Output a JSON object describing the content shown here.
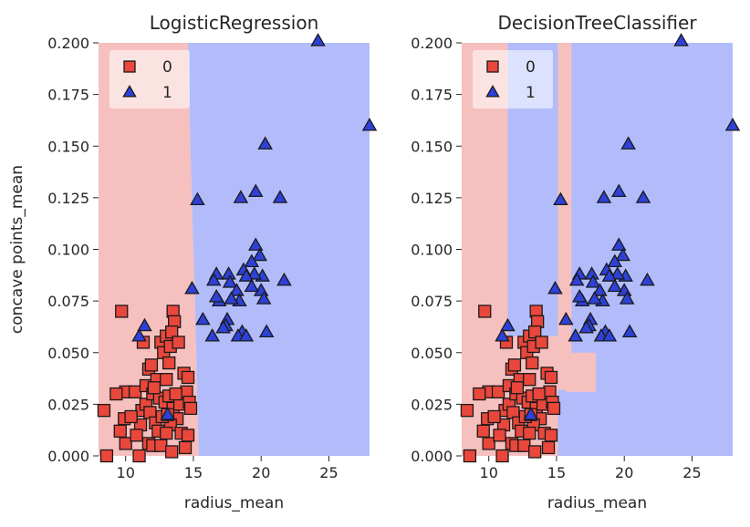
{
  "colors": {
    "class0_region": "#f6c0bf",
    "class1_region": "#b2bcfa",
    "class0_marker": "#e9473c",
    "class1_marker": "#2e41d6",
    "marker_edge": "#1a1a1a",
    "legend_bg": "#ffffff"
  },
  "chart_data": [
    {
      "type": "scatter",
      "title": "LogisticRegression",
      "xlabel": "radius_mean",
      "ylabel": "concave points_mean",
      "xlim": [
        8,
        28
      ],
      "ylim": [
        0,
        0.2
      ],
      "xticks": [
        "10",
        "15",
        "20",
        "25"
      ],
      "yticks": [
        "0.000",
        "0.025",
        "0.050",
        "0.075",
        "0.100",
        "0.125",
        "0.150",
        "0.175",
        "0.200"
      ],
      "legend": {
        "placement": "top-left",
        "entries": [
          "0",
          "1"
        ]
      },
      "grid": false,
      "decision_regions": [
        {
          "class": 0,
          "polygon": [
            [
              8,
              0
            ],
            [
              15.4,
              0
            ],
            [
              15.25,
              0.035
            ],
            [
              15.1,
              0.08
            ],
            [
              14.9,
              0.12
            ],
            [
              14.7,
              0.17
            ],
            [
              14.6,
              0.2
            ],
            [
              8,
              0.2
            ]
          ]
        },
        {
          "class": 1,
          "polygon": [
            [
              15.4,
              0
            ],
            [
              28,
              0
            ],
            [
              28,
              0.2
            ],
            [
              14.6,
              0.2
            ],
            [
              14.7,
              0.17
            ],
            [
              14.9,
              0.12
            ],
            [
              15.1,
              0.08
            ],
            [
              15.25,
              0.035
            ]
          ]
        }
      ]
    },
    {
      "type": "scatter",
      "title": "DecisionTreeClassifier",
      "xlabel": "radius_mean",
      "ylabel": "",
      "xlim": [
        8,
        28
      ],
      "ylim": [
        0,
        0.2
      ],
      "xticks": [
        "10",
        "15",
        "20",
        "25"
      ],
      "yticks": [
        "0.000",
        "0.025",
        "0.050",
        "0.075",
        "0.100",
        "0.125",
        "0.150",
        "0.175",
        "0.200"
      ],
      "legend": {
        "placement": "top-left",
        "entries": [
          "0",
          "1"
        ]
      },
      "grid": false,
      "decision_regions": [
        {
          "class": 0,
          "rect": [
            8,
            0,
            11.4,
            0.2
          ]
        },
        {
          "class": 1,
          "rect": [
            11.4,
            0,
            28,
            0.2
          ]
        },
        {
          "class": 0,
          "rect": [
            11.4,
            0,
            15.1,
            0.058
          ]
        },
        {
          "class": 0,
          "rect": [
            15.1,
            0.032,
            16.1,
            0.2
          ]
        },
        {
          "class": 0,
          "rect": [
            15.7,
            0.031,
            17.9,
            0.05
          ]
        }
      ]
    }
  ],
  "points": {
    "class0": [
      [
        9.7,
        0.07
      ],
      [
        8.4,
        0.022
      ],
      [
        10.0,
        0.031
      ],
      [
        9.3,
        0.03
      ],
      [
        8.6,
        0.0
      ],
      [
        9.6,
        0.012
      ],
      [
        9.9,
        0.018
      ],
      [
        10.0,
        0.006
      ],
      [
        10.7,
        0.031
      ],
      [
        11.0,
        0.0
      ],
      [
        11.2,
        0.022
      ],
      [
        11.1,
        0.015
      ],
      [
        10.8,
        0.01
      ],
      [
        11.5,
        0.034
      ],
      [
        11.3,
        0.055
      ],
      [
        11.7,
        0.042
      ],
      [
        11.5,
        0.025
      ],
      [
        12.0,
        0.03
      ],
      [
        11.8,
        0.021
      ],
      [
        12.2,
        0.016
      ],
      [
        12.4,
        0.012
      ],
      [
        11.7,
        0.006
      ],
      [
        12.0,
        0.005
      ],
      [
        12.6,
        0.005
      ],
      [
        12.6,
        0.055
      ],
      [
        13.0,
        0.058
      ],
      [
        12.8,
        0.05
      ],
      [
        13.3,
        0.053
      ],
      [
        12.3,
        0.037
      ],
      [
        13.0,
        0.037
      ],
      [
        12.5,
        0.028
      ],
      [
        12.9,
        0.026
      ],
      [
        13.2,
        0.029
      ],
      [
        13.2,
        0.045
      ],
      [
        13.5,
        0.07
      ],
      [
        13.6,
        0.065
      ],
      [
        13.4,
        0.06
      ],
      [
        13.9,
        0.055
      ],
      [
        13.5,
        0.023
      ],
      [
        13.8,
        0.018
      ],
      [
        13.3,
        0.015
      ],
      [
        13.0,
        0.011
      ],
      [
        14.0,
        0.025
      ],
      [
        14.3,
        0.04
      ],
      [
        14.6,
        0.038
      ],
      [
        14.5,
        0.031
      ],
      [
        14.7,
        0.026
      ],
      [
        14.8,
        0.023
      ],
      [
        14.1,
        0.011
      ],
      [
        14.6,
        0.01
      ],
      [
        14.4,
        0.004
      ],
      [
        13.4,
        0.002
      ],
      [
        12.1,
        0.033
      ],
      [
        12.7,
        0.019
      ],
      [
        13.7,
        0.03
      ],
      [
        11.9,
        0.044
      ],
      [
        10.4,
        0.019
      ],
      [
        13.1,
        0.02
      ]
    ],
    "class1": [
      [
        24.2,
        0.201
      ],
      [
        28.0,
        0.16
      ],
      [
        20.3,
        0.151
      ],
      [
        19.6,
        0.128
      ],
      [
        21.4,
        0.125
      ],
      [
        18.5,
        0.125
      ],
      [
        15.3,
        0.124
      ],
      [
        19.6,
        0.102
      ],
      [
        19.9,
        0.097
      ],
      [
        19.3,
        0.094
      ],
      [
        20.1,
        0.087
      ],
      [
        19.5,
        0.088
      ],
      [
        20.0,
        0.08
      ],
      [
        18.7,
        0.09
      ],
      [
        18.9,
        0.087
      ],
      [
        17.6,
        0.088
      ],
      [
        17.7,
        0.084
      ],
      [
        18.2,
        0.08
      ],
      [
        19.3,
        0.082
      ],
      [
        18.4,
        0.075
      ],
      [
        17.8,
        0.076
      ],
      [
        16.7,
        0.088
      ],
      [
        16.5,
        0.085
      ],
      [
        21.7,
        0.085
      ],
      [
        14.9,
        0.081
      ],
      [
        20.2,
        0.076
      ],
      [
        16.9,
        0.075
      ],
      [
        16.7,
        0.077
      ],
      [
        15.7,
        0.066
      ],
      [
        17.5,
        0.066
      ],
      [
        18.6,
        0.06
      ],
      [
        18.3,
        0.058
      ],
      [
        18.9,
        0.058
      ],
      [
        20.4,
        0.06
      ],
      [
        17.4,
        0.063
      ],
      [
        17.2,
        0.062
      ],
      [
        16.4,
        0.058
      ],
      [
        11.4,
        0.063
      ],
      [
        11.0,
        0.058
      ],
      [
        13.1,
        0.02
      ]
    ]
  }
}
